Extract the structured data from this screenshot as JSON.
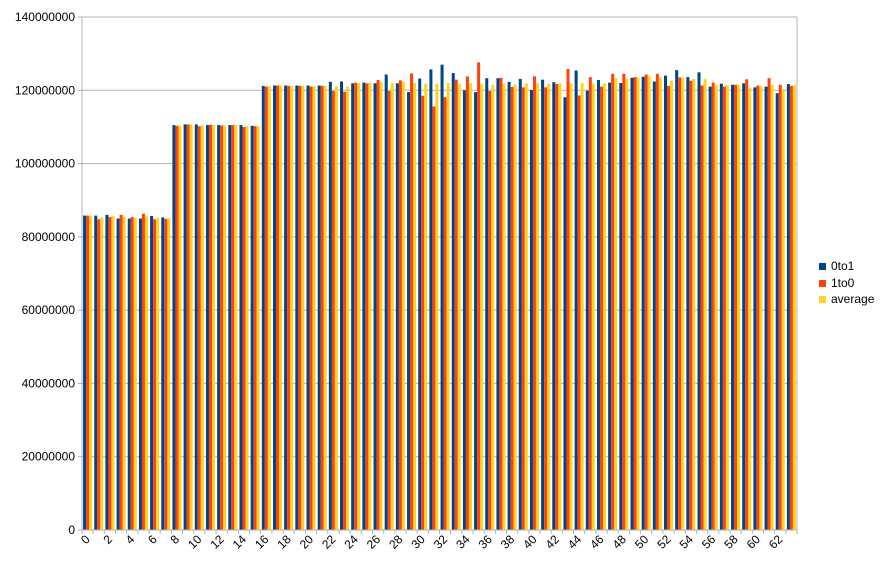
{
  "chart_data": {
    "type": "bar",
    "title": "",
    "xlabel": "",
    "ylabel": "",
    "ylim": [
      0,
      140000000
    ],
    "yticks": [
      0,
      20000000,
      40000000,
      60000000,
      80000000,
      100000000,
      120000000,
      140000000
    ],
    "ytick_labels": [
      "0",
      "20000000",
      "40000000",
      "60000000",
      "80000000",
      "100000000",
      "120000000",
      "140000000"
    ],
    "grid": "horizontal",
    "legend_position": "right",
    "categories": [
      0,
      1,
      2,
      3,
      4,
      5,
      6,
      7,
      8,
      9,
      10,
      11,
      12,
      13,
      14,
      15,
      16,
      17,
      18,
      19,
      20,
      21,
      22,
      23,
      24,
      25,
      26,
      27,
      28,
      29,
      30,
      31,
      32,
      33,
      34,
      35,
      36,
      37,
      38,
      39,
      40,
      41,
      42,
      43,
      44,
      45,
      46,
      47,
      48,
      49,
      50,
      51,
      52,
      53,
      54,
      55,
      56,
      57,
      58,
      59,
      60,
      61,
      62,
      63
    ],
    "xtick_labels_shown": [
      "0",
      "2",
      "4",
      "6",
      "8",
      "10",
      "12",
      "14",
      "16",
      "18",
      "20",
      "22",
      "24",
      "26",
      "28",
      "30",
      "32",
      "34",
      "36",
      "38",
      "40",
      "42",
      "44",
      "46",
      "48",
      "50",
      "52",
      "54",
      "56",
      "58",
      "60",
      "62"
    ],
    "series": [
      {
        "name": "0to1",
        "color": "#004586",
        "values": [
          85800000,
          85800000,
          86000000,
          85000000,
          85000000,
          85000000,
          85700000,
          85300000,
          110500000,
          110700000,
          110700000,
          110500000,
          110500000,
          110500000,
          110500000,
          110300000,
          121200000,
          121300000,
          121300000,
          121300000,
          121300000,
          121300000,
          122300000,
          122400000,
          121900000,
          122100000,
          121900000,
          124300000,
          121900000,
          119500000,
          123200000,
          125700000,
          127000000,
          124700000,
          120000000,
          119500000,
          123300000,
          123300000,
          122300000,
          123100000,
          120100000,
          122900000,
          122200000,
          118100000,
          125400000,
          119900000,
          122800000,
          122100000,
          122000000,
          123400000,
          123700000,
          122400000,
          124000000,
          125500000,
          123600000,
          124900000,
          121000000,
          121800000,
          121500000,
          121900000,
          120800000,
          121000000,
          119200000,
          121700000
        ]
      },
      {
        "name": "1to0",
        "color": "#ff420e",
        "values": [
          85800000,
          84800000,
          85400000,
          86000000,
          85400000,
          86300000,
          84800000,
          84900000,
          110300000,
          110700000,
          110200000,
          110600000,
          110400000,
          110500000,
          110000000,
          110200000,
          121000000,
          121300000,
          121200000,
          121200000,
          121000000,
          121200000,
          119800000,
          119600000,
          122100000,
          121900000,
          122800000,
          119800000,
          122700000,
          124600000,
          118500000,
          115600000,
          118100000,
          122900000,
          123800000,
          127600000,
          119800000,
          123400000,
          120900000,
          120800000,
          123800000,
          120800000,
          121700000,
          125800000,
          118600000,
          123600000,
          121000000,
          124500000,
          124500000,
          123600000,
          124300000,
          124500000,
          121200000,
          123500000,
          122600000,
          121300000,
          122100000,
          121000000,
          121500000,
          123000000,
          121300000,
          123300000,
          121500000,
          121200000
        ]
      },
      {
        "name": "average",
        "color": "#ffd320",
        "values": [
          85800000,
          85300000,
          85700000,
          85500000,
          85200000,
          85600000,
          85200000,
          85100000,
          110400000,
          110700000,
          110400000,
          110500000,
          110400000,
          110500000,
          110200000,
          110200000,
          121100000,
          121300000,
          121200000,
          121200000,
          121100000,
          121200000,
          121100000,
          121000000,
          122000000,
          122000000,
          122300000,
          122000000,
          122300000,
          122000000,
          121800000,
          121800000,
          122000000,
          121800000,
          121900000,
          121800000,
          121500000,
          121900000,
          121600000,
          121900000,
          121900000,
          121800000,
          121900000,
          121900000,
          122000000,
          121800000,
          121900000,
          123300000,
          123200000,
          123500000,
          124000000,
          123500000,
          122600000,
          123400000,
          123100000,
          123100000,
          121500000,
          121400000,
          121500000,
          120700000,
          121100000,
          121500000,
          120300000,
          121400000
        ]
      }
    ]
  },
  "legend": {
    "items": [
      {
        "label": "0to1",
        "color": "#004586"
      },
      {
        "label": "1to0",
        "color": "#ff420e"
      },
      {
        "label": "average",
        "color": "#ffd320"
      }
    ]
  }
}
